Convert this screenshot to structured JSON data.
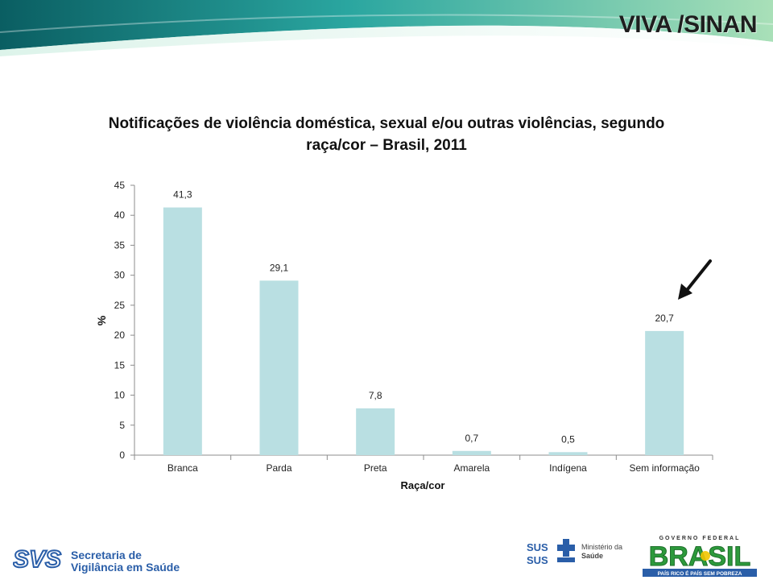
{
  "banner": {
    "title": "VIVA /SINAN"
  },
  "slide": {
    "title_line1": "Notificações de violência doméstica, sexual e/ou outras violências, segundo",
    "title_line2": "raça/cor – Brasil, 2011"
  },
  "chart_data": {
    "type": "bar",
    "categories": [
      "Branca",
      "Parda",
      "Preta",
      "Amarela",
      "Indígena",
      "Sem informação"
    ],
    "values": [
      41.3,
      29.1,
      7.8,
      0.7,
      0.5,
      20.7
    ],
    "value_labels": [
      "41,3",
      "29,1",
      "7,8",
      "0,7",
      "0,5",
      "20,7"
    ],
    "yticks": [
      "0",
      "5",
      "10",
      "15",
      "20",
      "25",
      "30",
      "35",
      "40",
      "45"
    ],
    "ylim": [
      0,
      45
    ],
    "ylabel": "%",
    "xlabel": "Raça/cor",
    "bar_color": "#b9dfe2",
    "grid": false
  },
  "footer": {
    "svs_line1": "Secretaria de",
    "svs_line2": "Vigilância em Saúde",
    "sus_label": "SUS",
    "ministerio_line1": "Ministério da",
    "ministerio_line2": "Saúde",
    "brasil_top": "GOVERNO FEDERAL",
    "brasil_word": "BRASIL",
    "brasil_bottom": "PAÍS RICO É PAÍS SEM POBREZA"
  },
  "colors": {
    "banner_dark": "#0b6e6c",
    "banner_light": "#8fd0a8",
    "brand_blue": "#2a5ea8",
    "brand_green": "#2d9a3c",
    "brand_yellow": "#f2c500"
  }
}
